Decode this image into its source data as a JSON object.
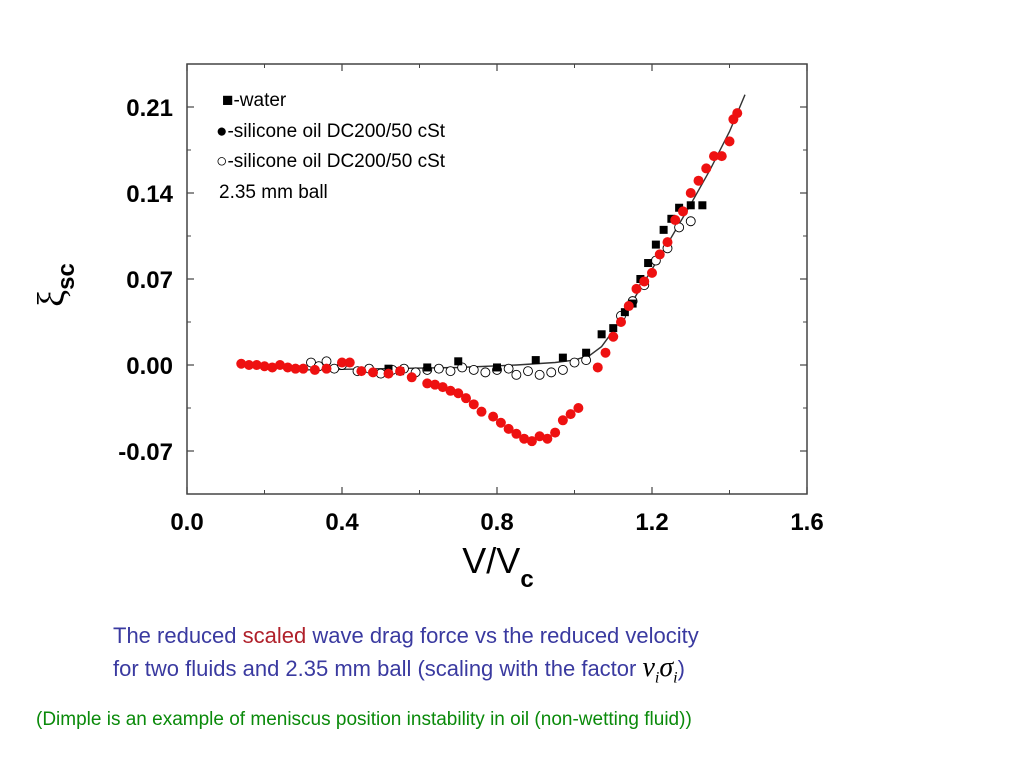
{
  "chart_data": {
    "type": "scatter",
    "xlabel": "V/V",
    "xlabel_sub": "c",
    "ylabel": "ξ",
    "ylabel_sub": "sc",
    "xlim": [
      0.0,
      1.6
    ],
    "ylim": [
      -0.105,
      0.245
    ],
    "xticks": [
      "0.0",
      "0.4",
      "0.8",
      "1.2",
      "1.6"
    ],
    "xtick_values": [
      0.0,
      0.4,
      0.8,
      1.2,
      1.6
    ],
    "yticks": [
      "0.21",
      "0.14",
      "0.07",
      "0.00",
      "-0.07"
    ],
    "ytick_values": [
      0.21,
      0.14,
      0.07,
      0.0,
      -0.07
    ],
    "legend": [
      "■-water",
      "●-silicone oil DC200/50 cSt",
      "○-silicone oil DC200/50 cSt",
      "2.35 mm ball"
    ],
    "legend_position": "top-left",
    "series": [
      {
        "marker": "square",
        "color": "#000000",
        "x": [
          0.52,
          0.55,
          0.62,
          0.7,
          0.8,
          0.9,
          0.97,
          1.03,
          1.07,
          1.1,
          1.13,
          1.15,
          1.17,
          1.19,
          1.21,
          1.23,
          1.25,
          1.27,
          1.3,
          1.33
        ],
        "y": [
          -0.003,
          -0.005,
          -0.002,
          0.003,
          -0.002,
          0.004,
          0.006,
          0.01,
          0.025,
          0.03,
          0.043,
          0.05,
          0.07,
          0.083,
          0.098,
          0.11,
          0.119,
          0.128,
          0.13,
          0.13
        ]
      },
      {
        "marker": "circle",
        "color": "#ee1111",
        "x": [
          0.14,
          0.16,
          0.18,
          0.2,
          0.22,
          0.24,
          0.26,
          0.28,
          0.3,
          0.33,
          0.36,
          0.4,
          0.42,
          0.45,
          0.48,
          0.52,
          0.55,
          0.58,
          0.62,
          0.64,
          0.66,
          0.68,
          0.7,
          0.72,
          0.74,
          0.76,
          0.79,
          0.81,
          0.83,
          0.85,
          0.87,
          0.89,
          0.91,
          0.93,
          0.95,
          0.97,
          0.99,
          1.01,
          1.06,
          1.08,
          1.1,
          1.12,
          1.14,
          1.16,
          1.18,
          1.2,
          1.22,
          1.24,
          1.26,
          1.28,
          1.3,
          1.32,
          1.34,
          1.36,
          1.38,
          1.4,
          1.41,
          1.42
        ],
        "y": [
          0.001,
          0.0,
          0.0,
          -0.001,
          -0.002,
          0.0,
          -0.002,
          -0.003,
          -0.003,
          -0.004,
          -0.003,
          0.002,
          0.002,
          -0.005,
          -0.006,
          -0.007,
          -0.005,
          -0.01,
          -0.015,
          -0.016,
          -0.018,
          -0.021,
          -0.023,
          -0.027,
          -0.032,
          -0.038,
          -0.042,
          -0.047,
          -0.052,
          -0.056,
          -0.06,
          -0.062,
          -0.058,
          -0.06,
          -0.055,
          -0.045,
          -0.04,
          -0.035,
          -0.002,
          0.01,
          0.023,
          0.035,
          0.048,
          0.062,
          0.068,
          0.075,
          0.09,
          0.1,
          0.118,
          0.125,
          0.14,
          0.15,
          0.16,
          0.17,
          0.17,
          0.182,
          0.2,
          0.205
        ]
      },
      {
        "marker": "open-circle",
        "color": "#000000",
        "x": [
          0.32,
          0.34,
          0.36,
          0.38,
          0.4,
          0.44,
          0.47,
          0.5,
          0.53,
          0.56,
          0.59,
          0.62,
          0.65,
          0.68,
          0.71,
          0.74,
          0.77,
          0.8,
          0.83,
          0.85,
          0.88,
          0.91,
          0.94,
          0.97,
          1.0,
          1.03,
          1.12,
          1.15,
          1.18,
          1.21,
          1.24,
          1.27,
          1.3
        ],
        "y": [
          0.002,
          -0.001,
          0.003,
          -0.003,
          0.0,
          -0.005,
          -0.003,
          -0.007,
          -0.004,
          -0.003,
          -0.006,
          -0.004,
          -0.003,
          -0.005,
          -0.002,
          -0.004,
          -0.006,
          -0.004,
          -0.003,
          -0.008,
          -0.005,
          -0.008,
          -0.006,
          -0.004,
          0.002,
          0.004,
          0.04,
          0.052,
          0.065,
          0.085,
          0.095,
          0.112,
          0.117
        ]
      }
    ],
    "fit_line": {
      "color": "#333333",
      "x": [
        0.3,
        0.5,
        0.7,
        0.85,
        0.95,
        1.0,
        1.04,
        1.07,
        1.1,
        1.15,
        1.2,
        1.25,
        1.3,
        1.35,
        1.4,
        1.44
      ],
      "y": [
        -0.004,
        -0.003,
        -0.002,
        0.0,
        0.002,
        0.004,
        0.008,
        0.015,
        0.028,
        0.052,
        0.078,
        0.104,
        0.131,
        0.159,
        0.19,
        0.22
      ]
    }
  },
  "caption": {
    "line1_pre": "The reduced ",
    "line1_highlight": "scaled",
    "line1_post": " wave drag force vs the reduced velocity",
    "line2_pre": "for two fluids and 2.35 mm ball (scaling with the factor ",
    "formula_nu": "ν",
    "formula_i1": "i",
    "formula_sigma": "σ",
    "formula_i2": "i",
    "line2_post": ")"
  },
  "note": "(Dimple is an example of meniscus position instability in oil (non-wetting fluid))"
}
